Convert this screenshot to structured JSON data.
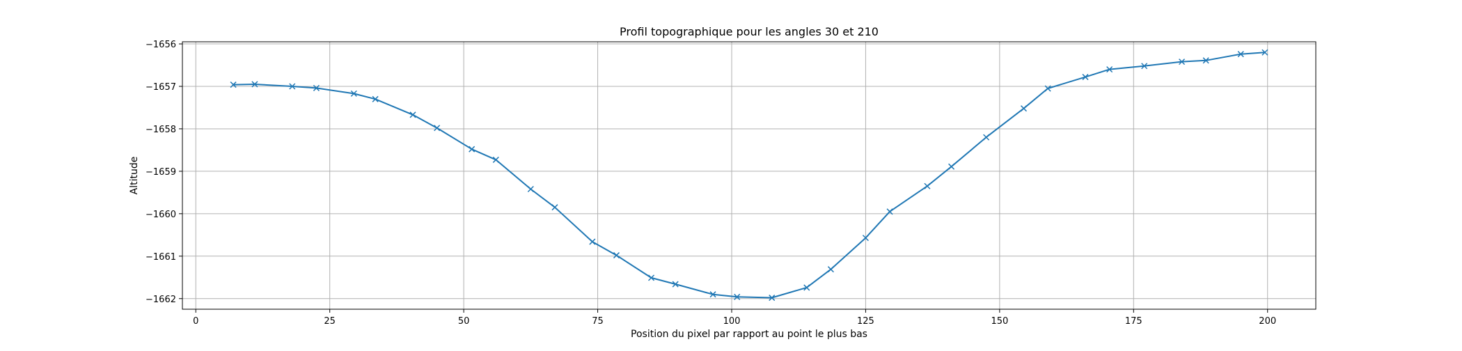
{
  "chart_data": {
    "type": "line",
    "title": "Profil topographique pour les angles 30 et 210",
    "xlabel": "Position du pixel par rapport au point le plus bas",
    "ylabel": "Altitude",
    "xlim": [
      -2.5,
      209
    ],
    "ylim": [
      -1662.25,
      -1655.95
    ],
    "xticks": [
      0,
      25,
      50,
      75,
      100,
      125,
      150,
      175,
      200
    ],
    "yticks": [
      -1656,
      -1657,
      -1658,
      -1659,
      -1660,
      -1661,
      -1662
    ],
    "grid": true,
    "marker": "x",
    "series": [
      {
        "color": "#1f77b4",
        "points": [
          {
            "x": 7,
            "y": -1656.96
          },
          {
            "x": 11,
            "y": -1656.95
          },
          {
            "x": 18,
            "y": -1657.0
          },
          {
            "x": 22.5,
            "y": -1657.04
          },
          {
            "x": 29.5,
            "y": -1657.17
          },
          {
            "x": 33.5,
            "y": -1657.3
          },
          {
            "x": 40.5,
            "y": -1657.67
          },
          {
            "x": 45,
            "y": -1657.98
          },
          {
            "x": 51.5,
            "y": -1658.48
          },
          {
            "x": 56,
            "y": -1658.73
          },
          {
            "x": 62.5,
            "y": -1659.42
          },
          {
            "x": 67,
            "y": -1659.85
          },
          {
            "x": 74,
            "y": -1660.66
          },
          {
            "x": 78.5,
            "y": -1660.98
          },
          {
            "x": 85,
            "y": -1661.51
          },
          {
            "x": 89.5,
            "y": -1661.66
          },
          {
            "x": 96.5,
            "y": -1661.9
          },
          {
            "x": 101,
            "y": -1661.96
          },
          {
            "x": 107.5,
            "y": -1661.98
          },
          {
            "x": 114,
            "y": -1661.74
          },
          {
            "x": 118.5,
            "y": -1661.31
          },
          {
            "x": 125,
            "y": -1660.57
          },
          {
            "x": 129.5,
            "y": -1659.95
          },
          {
            "x": 136.5,
            "y": -1659.35
          },
          {
            "x": 141,
            "y": -1658.89
          },
          {
            "x": 147.5,
            "y": -1658.2
          },
          {
            "x": 154.5,
            "y": -1657.52
          },
          {
            "x": 159,
            "y": -1657.05
          },
          {
            "x": 166,
            "y": -1656.78
          },
          {
            "x": 170.5,
            "y": -1656.6
          },
          {
            "x": 177,
            "y": -1656.52
          },
          {
            "x": 184,
            "y": -1656.42
          },
          {
            "x": 188.5,
            "y": -1656.39
          },
          {
            "x": 195,
            "y": -1656.24
          },
          {
            "x": 199.5,
            "y": -1656.2
          }
        ]
      }
    ]
  }
}
